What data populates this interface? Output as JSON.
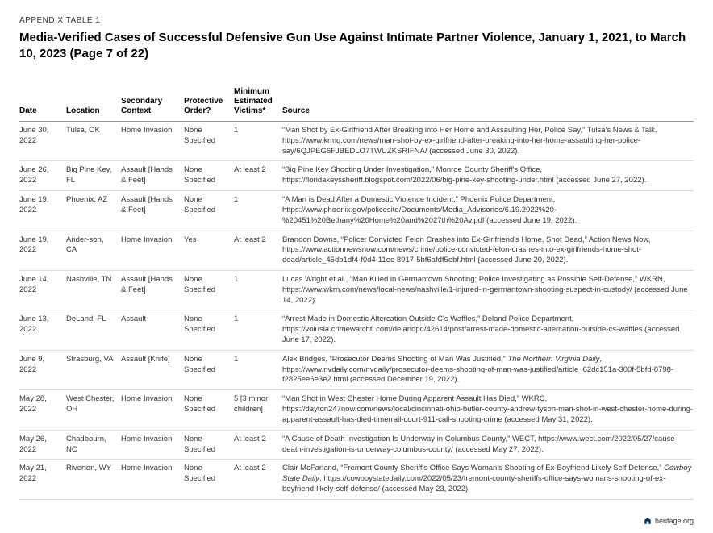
{
  "appendix_label": "APPENDIX TABLE 1",
  "title": "Media-Verified Cases of Successful Defensive Gun Use Against Intimate Partner Violence, January 1, 2021, to March 10, 2023 (Page 7 of 22)",
  "columns": {
    "date": "Date",
    "location": "Location",
    "context": "Secondary Context",
    "protective": "Protective Order?",
    "victims": "Minimum Estimated Victims*",
    "source": "Source"
  },
  "rows": [
    {
      "date": "June 30, 2022",
      "location": "Tulsa, OK",
      "context": "Home Invasion",
      "protective": "None Specified",
      "victims": "1",
      "source": "“Man Shot by Ex-Girlfriend After Breaking into Her Home and Assaulting Her, Police Say,” Tulsa's News & Talk, https://www.krmg.com/news/man-shot-by-ex-girlfriend-after-breaking-into-her-home-assaulting-her-police-say/6QJPEG6FJBEDLO7TWUZKSRIFNA/ (accessed June 30, 2022)."
    },
    {
      "date": "June 26, 2022",
      "location": "Big Pine Key, FL",
      "context": "Assault [Hands & Feet]",
      "protective": "None Specified",
      "victims": "At least 2",
      "source": "“Big Pine Key Shooting Under Investigation,” Monroe County Sheriff's Office, https://floridakeyssheriff.blogspot.com/2022/06/big-pine-key-shooting-under.html (accessed June 27, 2022)."
    },
    {
      "date": "June 19, 2022",
      "location": "Phoenix, AZ",
      "context": "Assault [Hands & Feet]",
      "protective": "None Specified",
      "victims": "1",
      "source": "“A Man is Dead After a Domestic Violence Incident,” Phoenix Police Department, https://www.phoenix.gov/policesite/Documents/Media_Advisories/6.19.2022%20-%20451%20Bethany%20Home%20and%2027th%20Av.pdf (accessed June 19, 2022)."
    },
    {
      "date": "June 19, 2022",
      "location": "Ander-son, CA",
      "context": "Home Invasion",
      "protective": "Yes",
      "victims": "At least 2",
      "source": "Brandon Downs, “Police: Convicted Felon Crashes into Ex-Girlfriend's Home, Shot Dead,” Action News Now, https://www.actionnewsnow.com/news/crime/police-convicted-felon-crashes-into-ex-girlfriends-home-shot-dead/article_45db1df4-f0d4-11ec-8917-5bf6afdf5ebf.html (accessed June 20, 2022)."
    },
    {
      "date": "June 14, 2022",
      "location": "Nashville, TN",
      "context": "Assault [Hands & Feet]",
      "protective": "None Specified",
      "victims": "1",
      "source": "Lucas Wright et al., “Man Killed in Germantown Shooting; Police Investigating as Possible Self-Defense,” WKRN, https://www.wkrn.com/news/local-news/nashville/1-injured-in-germantown-shooting-suspect-in-custody/ (accessed June 14, 2022)."
    },
    {
      "date": "June 13, 2022",
      "location": "DeLand, FL",
      "context": "Assault",
      "protective": "None Specified",
      "victims": "1",
      "source": "“Arrest Made in Domestic Altercation Outside C's Waffles,” Deland Police Department, https://volusia.crimewatchfl.com/delandpd/42614/post/arrest-made-domestic-altercation-outside-cs-waffles (accessed June 17, 2022)."
    },
    {
      "date": "June 9, 2022",
      "location": "Strasburg, VA",
      "context": "Assault [Knife]",
      "protective": "None Specified",
      "victims": "1",
      "source_html": "Alex Bridges, “Prosecutor Deems Shooting of Man Was Justified,” <em>The Northern Virginia Daily</em>, https://www.nvdaily.com/nvdaily/prosecutor-deems-shooting-of-man-was-justified/article_62dc151a-300f-5bfd-8798-f2825ee6e3e2.html (accessed December 19, 2022)."
    },
    {
      "date": "May 28, 2022",
      "location": "West Chester, OH",
      "context": "Home Invasion",
      "protective": "None Specified",
      "victims": "5 [3 minor children]",
      "source": "“Man Shot in West Chester Home During Apparent Assault Has Died,” WKRC, https://dayton247now.com/news/local/cincinnati-ohio-butler-county-andrew-tyson-man-shot-in-west-chester-home-during-apparent-assault-has-died-timerrail-court-911-call-shooting-crime (accessed May 31, 2022)."
    },
    {
      "date": "May 26, 2022",
      "location": "Chadbourn, NC",
      "context": "Home Invasion",
      "protective": "None Specified",
      "victims": "At least 2",
      "source": "“A Cause of Death Investigation Is Underway in Columbus County,” WECT, https://www.wect.com/2022/05/27/cause-death-investigation-is-underway-columbus-county/ (accessed May 27, 2022)."
    },
    {
      "date": "May 21, 2022",
      "location": "Riverton, WY",
      "context": "Home Invasion",
      "protective": "None Specified",
      "victims": "At least 2",
      "source_html": "Clair McFarland, “Fremont County Sheriff's Office Says Woman's Shooting of Ex-Boyfriend Likely Self Defense,” <em>Cowboy State Daily</em>, https://cowboystatedaily.com/2022/05/23/fremont-county-sheriffs-office-says-womans-shooting-of-ex-boyfriend-likely-self-defense/ (accessed May 23, 2022)."
    }
  ],
  "footer_text": "heritage.org"
}
